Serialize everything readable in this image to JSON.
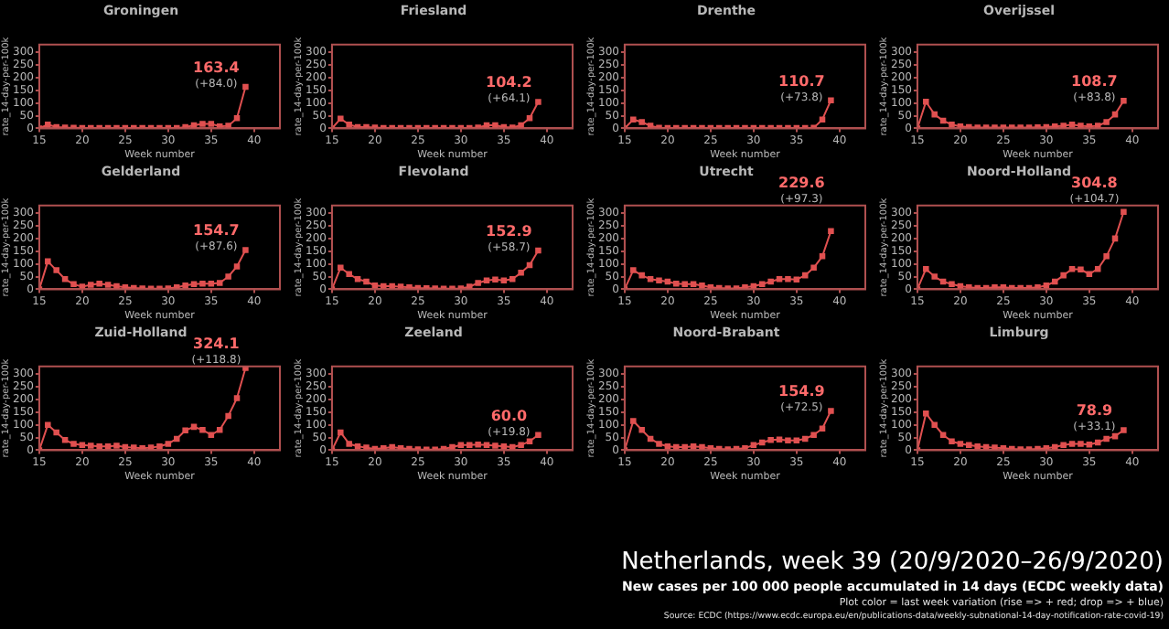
{
  "chart_data": [
    {
      "type": "line",
      "title": "Groningen",
      "xlabel": "Week number",
      "ylabel": "rate_14-day-per-100k",
      "xlim": [
        15,
        43
      ],
      "xticks": [
        15,
        20,
        25,
        30,
        35,
        40
      ],
      "ylim": [
        0,
        330
      ],
      "yticks": [
        0,
        50,
        100,
        150,
        200,
        250,
        300
      ],
      "marker": "square",
      "x": [
        15,
        16,
        17,
        18,
        19,
        20,
        21,
        22,
        23,
        24,
        25,
        26,
        27,
        28,
        29,
        30,
        31,
        32,
        33,
        34,
        35,
        36,
        37,
        38,
        39
      ],
      "series": [
        {
          "color": "#e05050",
          "values": [
            0,
            15,
            5,
            3,
            2,
            1,
            1,
            1,
            1,
            1,
            1,
            1,
            1,
            1,
            1,
            1,
            1,
            5,
            12,
            18,
            18,
            8,
            10,
            40,
            163.4
          ],
          "value_labels": [
            null,
            null,
            null,
            null,
            null,
            null,
            null,
            null,
            null,
            null,
            null,
            null,
            null,
            null,
            null,
            null,
            null,
            null,
            null,
            null,
            null,
            null,
            null,
            null,
            "163.4"
          ]
        }
      ],
      "annotations": [
        "(+84.0)"
      ]
    },
    {
      "type": "line",
      "title": "Friesland",
      "xlabel": "Week number",
      "ylabel": "rate_14-day-per-100k",
      "xlim": [
        15,
        43
      ],
      "xticks": [
        15,
        20,
        25,
        30,
        35,
        40
      ],
      "ylim": [
        0,
        330
      ],
      "yticks": [
        0,
        50,
        100,
        150,
        200,
        250,
        300
      ],
      "marker": "square",
      "x": [
        15,
        16,
        17,
        18,
        19,
        20,
        21,
        22,
        23,
        24,
        25,
        26,
        27,
        28,
        29,
        30,
        31,
        32,
        33,
        34,
        35,
        36,
        37,
        38,
        39
      ],
      "series": [
        {
          "color": "#e05050",
          "values": [
            0,
            38,
            15,
            5,
            5,
            3,
            1,
            1,
            1,
            1,
            1,
            1,
            1,
            1,
            1,
            1,
            1,
            3,
            12,
            12,
            5,
            3,
            12,
            40,
            104.2
          ],
          "value_labels": [
            null,
            null,
            null,
            null,
            null,
            null,
            null,
            null,
            null,
            null,
            null,
            null,
            null,
            null,
            null,
            null,
            null,
            null,
            null,
            null,
            null,
            null,
            null,
            null,
            "104.2"
          ]
        }
      ],
      "annotations": [
        "(+64.1)"
      ]
    },
    {
      "type": "line",
      "title": "Drenthe",
      "xlabel": "Week number",
      "ylabel": "rate_14-day-per-100k",
      "xlim": [
        15,
        43
      ],
      "xticks": [
        15,
        20,
        25,
        30,
        35,
        40
      ],
      "ylim": [
        0,
        330
      ],
      "yticks": [
        0,
        50,
        100,
        150,
        200,
        250,
        300
      ],
      "marker": "square",
      "x": [
        15,
        16,
        17,
        18,
        19,
        20,
        21,
        22,
        23,
        24,
        25,
        26,
        27,
        28,
        29,
        30,
        31,
        32,
        33,
        34,
        35,
        36,
        37,
        38,
        39
      ],
      "series": [
        {
          "color": "#e05050",
          "values": [
            0,
            35,
            25,
            10,
            2,
            1,
            1,
            1,
            1,
            1,
            1,
            1,
            1,
            1,
            1,
            1,
            1,
            1,
            1,
            1,
            1,
            1,
            2,
            35,
            110.7
          ],
          "value_labels": [
            null,
            null,
            null,
            null,
            null,
            null,
            null,
            null,
            null,
            null,
            null,
            null,
            null,
            null,
            null,
            null,
            null,
            null,
            null,
            null,
            null,
            null,
            null,
            null,
            "110.7"
          ]
        }
      ],
      "annotations": [
        "(+73.8)"
      ]
    },
    {
      "type": "line",
      "title": "Overijssel",
      "xlabel": "Week number",
      "ylabel": "rate_14-day-per-100k",
      "xlim": [
        15,
        43
      ],
      "xticks": [
        15,
        20,
        25,
        30,
        35,
        40
      ],
      "ylim": [
        0,
        330
      ],
      "yticks": [
        0,
        50,
        100,
        150,
        200,
        250,
        300
      ],
      "marker": "square",
      "x": [
        15,
        16,
        17,
        18,
        19,
        20,
        21,
        22,
        23,
        24,
        25,
        26,
        27,
        28,
        29,
        30,
        31,
        32,
        33,
        34,
        35,
        36,
        37,
        38,
        39
      ],
      "series": [
        {
          "color": "#e05050",
          "values": [
            0,
            105,
            55,
            30,
            15,
            8,
            5,
            3,
            3,
            3,
            3,
            3,
            3,
            3,
            4,
            5,
            8,
            10,
            15,
            10,
            8,
            10,
            25,
            55,
            108.7
          ],
          "value_labels": [
            null,
            null,
            null,
            null,
            null,
            null,
            null,
            null,
            null,
            null,
            null,
            null,
            null,
            null,
            null,
            null,
            null,
            null,
            null,
            null,
            null,
            null,
            null,
            null,
            "108.7"
          ]
        }
      ],
      "annotations": [
        "(+83.8)"
      ]
    },
    {
      "type": "line",
      "title": "Gelderland",
      "xlabel": "Week number",
      "ylabel": "rate_14-day-per-100k",
      "xlim": [
        15,
        43
      ],
      "xticks": [
        15,
        20,
        25,
        30,
        35,
        40
      ],
      "ylim": [
        0,
        330
      ],
      "yticks": [
        0,
        50,
        100,
        150,
        200,
        250,
        300
      ],
      "marker": "square",
      "x": [
        15,
        16,
        17,
        18,
        19,
        20,
        21,
        22,
        23,
        24,
        25,
        26,
        27,
        28,
        29,
        30,
        31,
        32,
        33,
        34,
        35,
        36,
        37,
        38,
        39
      ],
      "series": [
        {
          "color": "#e05050",
          "values": [
            0,
            110,
            75,
            40,
            20,
            10,
            18,
            22,
            18,
            12,
            8,
            5,
            3,
            2,
            2,
            3,
            8,
            15,
            20,
            22,
            22,
            25,
            50,
            90,
            154.7
          ],
          "value_labels": [
            null,
            null,
            null,
            null,
            null,
            null,
            null,
            null,
            null,
            null,
            null,
            null,
            null,
            null,
            null,
            null,
            null,
            null,
            null,
            null,
            null,
            null,
            null,
            null,
            "154.7"
          ]
        }
      ],
      "annotations": [
        "(+87.6)"
      ]
    },
    {
      "type": "line",
      "title": "Flevoland",
      "xlabel": "Week number",
      "ylabel": "rate_14-day-per-100k",
      "xlim": [
        15,
        43
      ],
      "xticks": [
        15,
        20,
        25,
        30,
        35,
        40
      ],
      "ylim": [
        0,
        330
      ],
      "yticks": [
        0,
        50,
        100,
        150,
        200,
        250,
        300
      ],
      "marker": "square",
      "x": [
        15,
        16,
        17,
        18,
        19,
        20,
        21,
        22,
        23,
        24,
        25,
        26,
        27,
        28,
        29,
        30,
        31,
        32,
        33,
        34,
        35,
        36,
        37,
        38,
        39
      ],
      "series": [
        {
          "color": "#e05050",
          "values": [
            0,
            85,
            60,
            40,
            30,
            15,
            12,
            12,
            10,
            8,
            5,
            4,
            3,
            2,
            2,
            3,
            10,
            25,
            35,
            38,
            35,
            40,
            65,
            95,
            152.9
          ],
          "value_labels": [
            null,
            null,
            null,
            null,
            null,
            null,
            null,
            null,
            null,
            null,
            null,
            null,
            null,
            null,
            null,
            null,
            null,
            null,
            null,
            null,
            null,
            null,
            null,
            null,
            "152.9"
          ]
        }
      ],
      "annotations": [
        "(+58.7)"
      ]
    },
    {
      "type": "line",
      "title": "Utrecht",
      "xlabel": "Week number",
      "ylabel": "rate_14-day-per-100k",
      "xlim": [
        15,
        43
      ],
      "xticks": [
        15,
        20,
        25,
        30,
        35,
        40
      ],
      "ylim": [
        0,
        330
      ],
      "yticks": [
        0,
        50,
        100,
        150,
        200,
        250,
        300
      ],
      "marker": "square",
      "x": [
        15,
        16,
        17,
        18,
        19,
        20,
        21,
        22,
        23,
        24,
        25,
        26,
        27,
        28,
        29,
        30,
        31,
        32,
        33,
        34,
        35,
        36,
        37,
        38,
        39
      ],
      "series": [
        {
          "color": "#e05050",
          "values": [
            0,
            75,
            55,
            40,
            35,
            30,
            22,
            20,
            20,
            15,
            8,
            5,
            3,
            3,
            8,
            12,
            20,
            30,
            40,
            40,
            38,
            55,
            85,
            130,
            229.6
          ],
          "value_labels": [
            null,
            null,
            null,
            null,
            null,
            null,
            null,
            null,
            null,
            null,
            null,
            null,
            null,
            null,
            null,
            null,
            null,
            null,
            null,
            null,
            null,
            null,
            null,
            null,
            "229.6"
          ]
        }
      ],
      "annotations": [
        "(+97.3)"
      ]
    },
    {
      "type": "line",
      "title": "Noord-Holland",
      "xlabel": "Week number",
      "ylabel": "rate_14-day-per-100k",
      "xlim": [
        15,
        43
      ],
      "xticks": [
        15,
        20,
        25,
        30,
        35,
        40
      ],
      "ylim": [
        0,
        330
      ],
      "yticks": [
        0,
        50,
        100,
        150,
        200,
        250,
        300
      ],
      "marker": "square",
      "x": [
        15,
        16,
        17,
        18,
        19,
        20,
        21,
        22,
        23,
        24,
        25,
        26,
        27,
        28,
        29,
        30,
        31,
        32,
        33,
        34,
        35,
        36,
        37,
        38,
        39
      ],
      "series": [
        {
          "color": "#e05050",
          "values": [
            0,
            80,
            50,
            30,
            20,
            12,
            8,
            5,
            5,
            8,
            8,
            5,
            5,
            5,
            8,
            15,
            30,
            55,
            80,
            78,
            60,
            80,
            130,
            200,
            304.8
          ],
          "value_labels": [
            null,
            null,
            null,
            null,
            null,
            null,
            null,
            null,
            null,
            null,
            null,
            null,
            null,
            null,
            null,
            null,
            null,
            null,
            null,
            null,
            null,
            null,
            null,
            null,
            "304.8"
          ]
        }
      ],
      "annotations": [
        "(+104.7)"
      ]
    },
    {
      "type": "line",
      "title": "Zuid-Holland",
      "xlabel": "Week number",
      "ylabel": "rate_14-day-per-100k",
      "xlim": [
        15,
        43
      ],
      "xticks": [
        15,
        20,
        25,
        30,
        35,
        40
      ],
      "ylim": [
        0,
        330
      ],
      "yticks": [
        0,
        50,
        100,
        150,
        200,
        250,
        300
      ],
      "marker": "square",
      "x": [
        15,
        16,
        17,
        18,
        19,
        20,
        21,
        22,
        23,
        24,
        25,
        26,
        27,
        28,
        29,
        30,
        31,
        32,
        33,
        34,
        35,
        36,
        37,
        38,
        39
      ],
      "series": [
        {
          "color": "#e05050",
          "values": [
            0,
            100,
            70,
            40,
            25,
            20,
            18,
            15,
            15,
            18,
            12,
            10,
            8,
            10,
            15,
            25,
            45,
            78,
            92,
            80,
            60,
            80,
            135,
            205,
            324.1
          ],
          "value_labels": [
            null,
            null,
            null,
            null,
            null,
            null,
            null,
            null,
            null,
            null,
            null,
            null,
            null,
            null,
            null,
            null,
            null,
            null,
            null,
            null,
            null,
            null,
            null,
            null,
            "324.1"
          ]
        }
      ],
      "annotations": [
        "(+118.8)"
      ]
    },
    {
      "type": "line",
      "title": "Zeeland",
      "xlabel": "Week number",
      "ylabel": "rate_14-day-per-100k",
      "xlim": [
        15,
        43
      ],
      "xticks": [
        15,
        20,
        25,
        30,
        35,
        40
      ],
      "ylim": [
        0,
        330
      ],
      "yticks": [
        0,
        50,
        100,
        150,
        200,
        250,
        300
      ],
      "marker": "square",
      "x": [
        15,
        16,
        17,
        18,
        19,
        20,
        21,
        22,
        23,
        24,
        25,
        26,
        27,
        28,
        29,
        30,
        31,
        32,
        33,
        34,
        35,
        36,
        37,
        38,
        39
      ],
      "series": [
        {
          "color": "#e05050",
          "values": [
            0,
            70,
            25,
            15,
            10,
            5,
            8,
            12,
            8,
            5,
            3,
            2,
            2,
            5,
            12,
            20,
            20,
            22,
            20,
            18,
            15,
            12,
            20,
            35,
            60.0
          ],
          "value_labels": [
            null,
            null,
            null,
            null,
            null,
            null,
            null,
            null,
            null,
            null,
            null,
            null,
            null,
            null,
            null,
            null,
            null,
            null,
            null,
            null,
            null,
            null,
            null,
            null,
            "60.0"
          ]
        }
      ],
      "annotations": [
        "(+19.8)"
      ]
    },
    {
      "type": "line",
      "title": "Noord-Brabant",
      "xlabel": "Week number",
      "ylabel": "rate_14-day-per-100k",
      "xlim": [
        15,
        43
      ],
      "xticks": [
        15,
        20,
        25,
        30,
        35,
        40
      ],
      "ylim": [
        0,
        330
      ],
      "yticks": [
        0,
        50,
        100,
        150,
        200,
        250,
        300
      ],
      "marker": "square",
      "x": [
        15,
        16,
        17,
        18,
        19,
        20,
        21,
        22,
        23,
        24,
        25,
        26,
        27,
        28,
        29,
        30,
        31,
        32,
        33,
        34,
        35,
        36,
        37,
        38,
        39
      ],
      "series": [
        {
          "color": "#e05050",
          "values": [
            0,
            115,
            80,
            45,
            25,
            15,
            12,
            12,
            15,
            12,
            8,
            5,
            3,
            5,
            8,
            20,
            30,
            40,
            42,
            38,
            38,
            45,
            60,
            85,
            154.9
          ],
          "value_labels": [
            null,
            null,
            null,
            null,
            null,
            null,
            null,
            null,
            null,
            null,
            null,
            null,
            null,
            null,
            null,
            null,
            null,
            null,
            null,
            null,
            null,
            null,
            null,
            null,
            "154.9"
          ]
        }
      ],
      "annotations": [
        "(+72.5)"
      ]
    },
    {
      "type": "line",
      "title": "Limburg",
      "xlabel": "Week number",
      "ylabel": "rate_14-day-per-100k",
      "xlim": [
        15,
        43
      ],
      "xticks": [
        15,
        20,
        25,
        30,
        35,
        40
      ],
      "ylim": [
        0,
        330
      ],
      "yticks": [
        0,
        50,
        100,
        150,
        200,
        250,
        300
      ],
      "marker": "square",
      "x": [
        15,
        16,
        17,
        18,
        19,
        20,
        21,
        22,
        23,
        24,
        25,
        26,
        27,
        28,
        29,
        30,
        31,
        32,
        33,
        34,
        35,
        36,
        37,
        38,
        39
      ],
      "series": [
        {
          "color": "#e05050",
          "values": [
            0,
            145,
            100,
            60,
            35,
            25,
            20,
            15,
            12,
            10,
            8,
            5,
            3,
            3,
            5,
            8,
            12,
            20,
            25,
            25,
            22,
            30,
            45,
            55,
            78.9
          ],
          "value_labels": [
            null,
            null,
            null,
            null,
            null,
            null,
            null,
            null,
            null,
            null,
            null,
            null,
            null,
            null,
            null,
            null,
            null,
            null,
            null,
            null,
            null,
            null,
            null,
            null,
            "78.9"
          ]
        }
      ],
      "annotations": [
        "(+33.1)"
      ]
    },
    {
      "type": "other",
      "title": "Netherlands, week 39 (20/9/2020–26/9/2020)",
      "subtitle": "New cases per 100 000 people accumulated in 14 days (ECDC weekly data)",
      "annotations": [
        "Plot color = last week variation (rise => + red; drop => + blue)",
        "Source: ECDC (https://www.ecdc.europa.eu/en/publications-data/weekly-subnational-14-day-notification-rate-covid-19)"
      ]
    }
  ]
}
